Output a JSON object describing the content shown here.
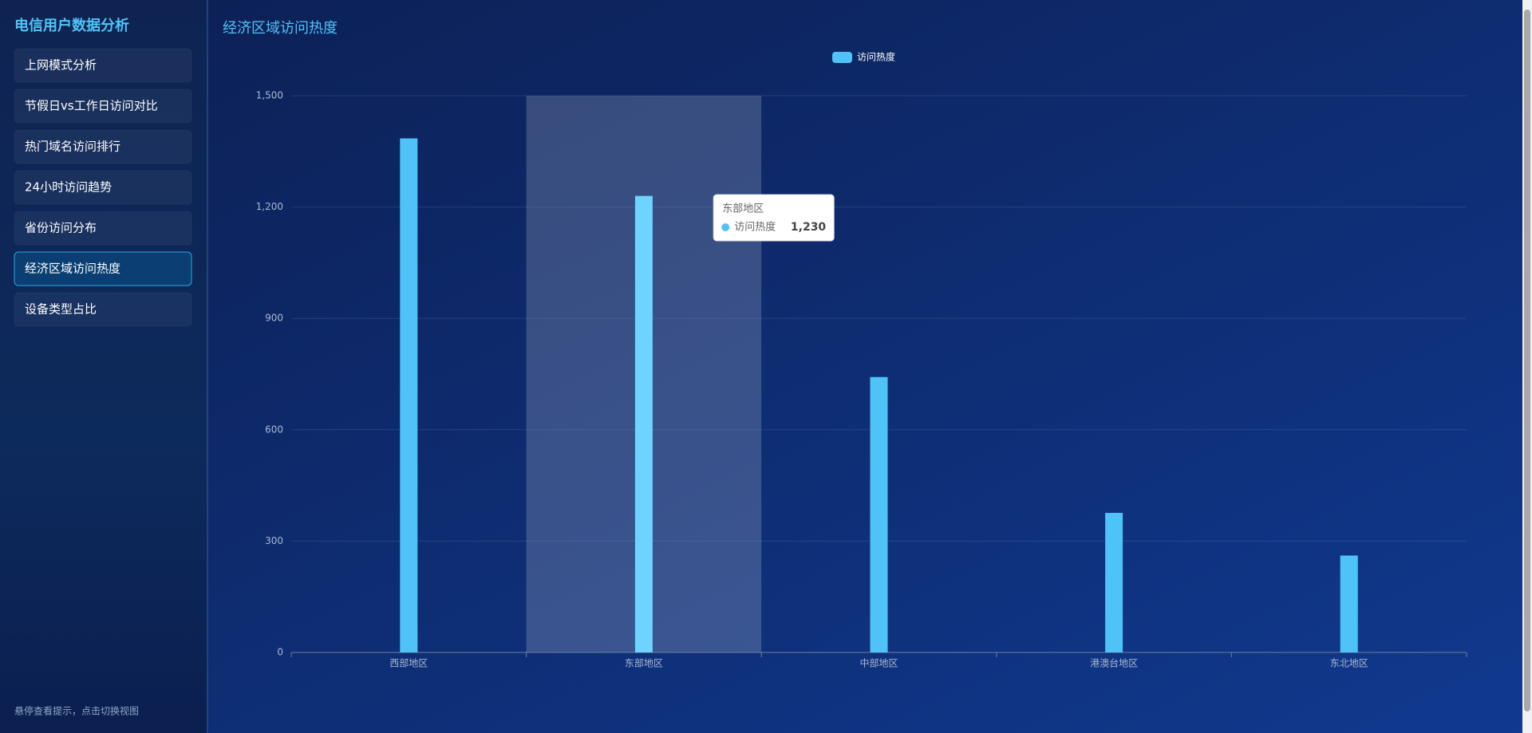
{
  "sidebar": {
    "title": "电信用户数据分析",
    "items": [
      "上网模式分析",
      "节假日vs工作日访问对比",
      "热门域名访问排行",
      "24小时访问趋势",
      "省份访问分布",
      "经济区域访问热度",
      "设备类型占比"
    ],
    "active": 5,
    "footer": "悬停查看提示，点击切换视图"
  },
  "chart_data": {
    "type": "bar",
    "title": "经济区域访问热度",
    "categories": [
      "西部地区",
      "东部地区",
      "中部地区",
      "港澳台地区",
      "东北地区"
    ],
    "series": [
      {
        "name": "访问热度",
        "color": "#4fc3f7",
        "values": [
          1385,
          1230,
          742,
          376,
          261
        ]
      }
    ],
    "ylim": [
      0,
      1500
    ],
    "yticks": [
      0,
      300,
      600,
      900,
      {
        "value": 1200,
        "label": "1,200"
      },
      {
        "value": 1500,
        "label": "1,500"
      }
    ],
    "grid": true,
    "legend": "top",
    "tooltip": {
      "title": "东部地区",
      "label": "访问热度",
      "value": "1,230"
    }
  }
}
